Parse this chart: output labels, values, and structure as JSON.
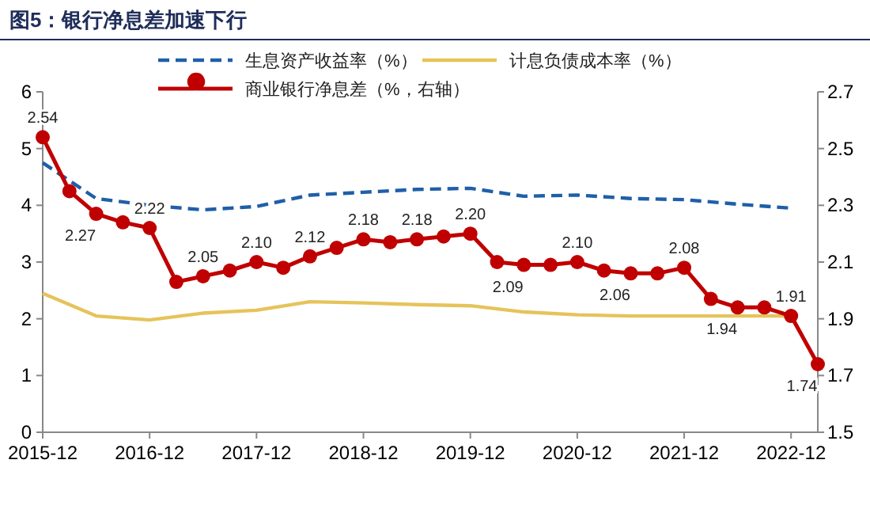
{
  "chart_data": {
    "type": "line",
    "title": "图5：银行净息差加速下行",
    "series": [
      {
        "name": "生息资产收益率（%）",
        "color": "#1f5fa8",
        "line_style": "dashed",
        "marker": "none",
        "x": [
          "2015-12",
          "2016-06",
          "2016-12",
          "2017-06",
          "2017-12",
          "2018-06",
          "2018-12",
          "2019-06",
          "2019-12",
          "2020-06",
          "2020-12",
          "2021-06",
          "2021-12",
          "2022-06",
          "2022-12"
        ],
        "values": [
          4.75,
          4.12,
          4.0,
          3.92,
          3.98,
          4.18,
          4.23,
          4.28,
          4.3,
          4.16,
          4.18,
          4.12,
          4.1,
          4.02,
          3.95
        ]
      },
      {
        "name": "计息负债成本率（%）",
        "color": "#e6c35a",
        "line_style": "solid",
        "marker": "none",
        "x": [
          "2015-12",
          "2016-06",
          "2016-12",
          "2017-06",
          "2017-12",
          "2018-06",
          "2018-12",
          "2019-06",
          "2019-12",
          "2020-06",
          "2020-12",
          "2021-06",
          "2021-12",
          "2022-06",
          "2022-12"
        ],
        "values": [
          2.45,
          2.05,
          1.98,
          2.1,
          2.15,
          2.3,
          2.28,
          2.25,
          2.23,
          2.12,
          2.07,
          2.05,
          2.05,
          2.05,
          2.05
        ]
      },
      {
        "name": "商业银行净息差（%，右轴）",
        "color": "#c00000",
        "line_style": "solid",
        "marker": "circle",
        "axis": "y2",
        "x": [
          "2015-12",
          "2016-03",
          "2016-06",
          "2016-09",
          "2016-12",
          "2017-03",
          "2017-06",
          "2017-09",
          "2017-12",
          "2018-03",
          "2018-06",
          "2018-09",
          "2018-12",
          "2019-03",
          "2019-06",
          "2019-09",
          "2019-12",
          "2020-03",
          "2020-06",
          "2020-09",
          "2020-12",
          "2021-03",
          "2021-06",
          "2021-09",
          "2021-12",
          "2022-03",
          "2022-06",
          "2022-09",
          "2022-12",
          "2023-03"
        ],
        "values": [
          2.54,
          2.35,
          2.27,
          2.24,
          2.22,
          2.03,
          2.05,
          2.07,
          2.1,
          2.08,
          2.12,
          2.15,
          2.18,
          2.17,
          2.18,
          2.19,
          2.2,
          2.1,
          2.09,
          2.09,
          2.1,
          2.07,
          2.06,
          2.06,
          2.08,
          1.97,
          1.94,
          1.94,
          1.91,
          1.74
        ],
        "value_labels": [
          "2.54",
          null,
          "2.27",
          null,
          "2.22",
          null,
          "2.05",
          null,
          "2.10",
          null,
          "2.12",
          null,
          "2.18",
          null,
          "2.18",
          null,
          "2.20",
          null,
          "2.09",
          null,
          "2.10",
          null,
          "2.06",
          null,
          "2.08",
          null,
          "1.94",
          null,
          "1.91",
          "1.74"
        ]
      }
    ],
    "xlim": [
      "2015-12",
      "2023-03"
    ],
    "xticks": [
      "2015-12",
      "2016-12",
      "2017-12",
      "2018-12",
      "2019-12",
      "2020-12",
      "2021-12",
      "2022-12"
    ],
    "ylim": [
      0,
      6
    ],
    "yticks": [
      0,
      1,
      2,
      3,
      4,
      5,
      6
    ],
    "y2lim": [
      1.5,
      2.7
    ],
    "y2ticks": [
      1.5,
      1.7,
      1.9,
      2.1,
      2.3,
      2.5,
      2.7
    ],
    "legend": "top",
    "grid": false
  }
}
